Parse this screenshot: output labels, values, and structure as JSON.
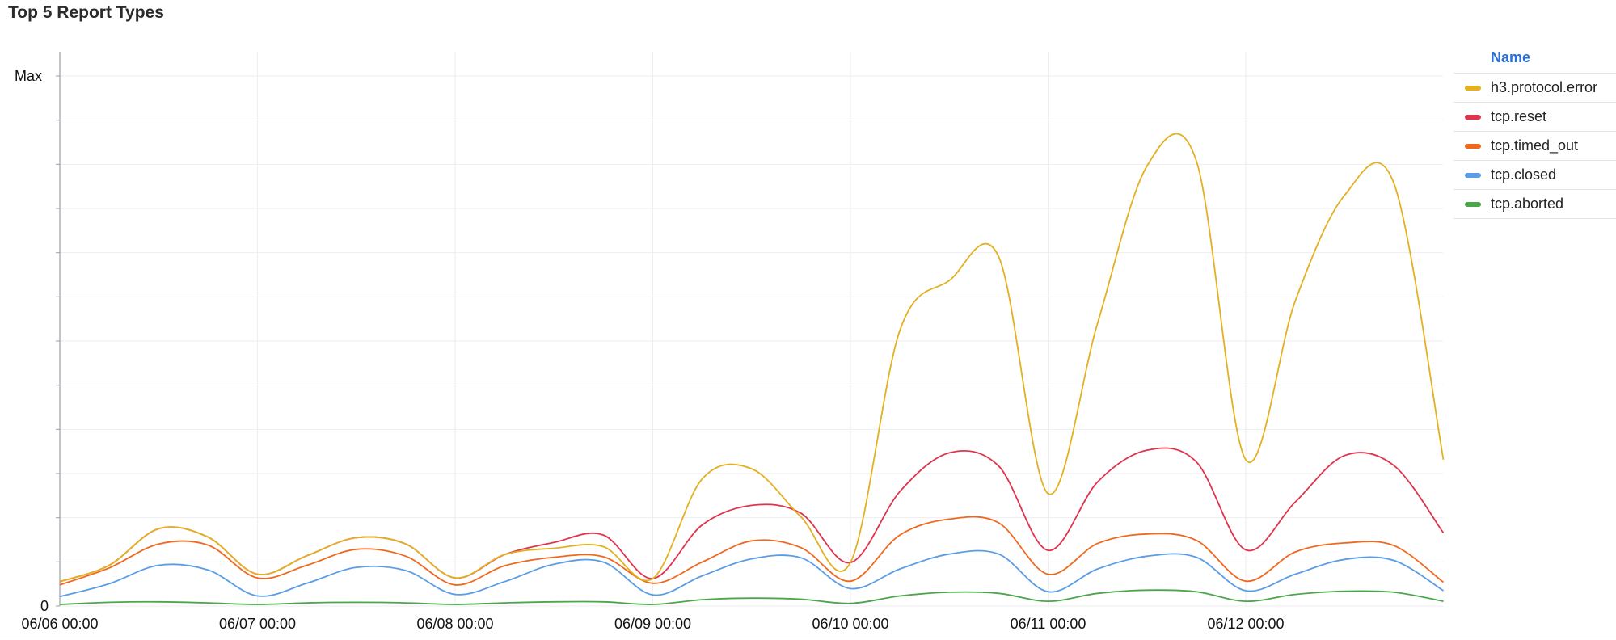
{
  "title": "Top 5 Report Types",
  "legend": {
    "header": "Name",
    "items": [
      {
        "label": "h3.protocol.error",
        "color": "#e3b020"
      },
      {
        "label": "tcp.reset",
        "color": "#e0334c"
      },
      {
        "label": "tcp.timed_out",
        "color": "#f0681e"
      },
      {
        "label": "tcp.closed",
        "color": "#5a9de6"
      },
      {
        "label": "tcp.aborted",
        "color": "#4ca64c"
      }
    ]
  },
  "chart_data": {
    "type": "line",
    "title": "Top 5 Report Types",
    "xlabel": "",
    "ylabel": "",
    "x_ticks": [
      "06/06 00:00",
      "06/07 00:00",
      "06/08 00:00",
      "06/09 00:00",
      "06/10 00:00",
      "06/11 00:00",
      "06/12 00:00"
    ],
    "y_ticks": [
      "0",
      "Max"
    ],
    "x": [
      "06/06 00:00",
      "06/06 06:00",
      "06/06 12:00",
      "06/06 18:00",
      "06/07 00:00",
      "06/07 06:00",
      "06/07 12:00",
      "06/07 18:00",
      "06/08 00:00",
      "06/08 06:00",
      "06/08 12:00",
      "06/08 18:00",
      "06/09 00:00",
      "06/09 06:00",
      "06/09 12:00",
      "06/09 18:00",
      "06/10 00:00",
      "06/10 06:00",
      "06/10 12:00",
      "06/10 18:00",
      "06/11 00:00",
      "06/11 06:00",
      "06/11 12:00",
      "06/11 18:00",
      "06/12 00:00",
      "06/12 06:00",
      "06/12 12:00",
      "06/12 18:00",
      "06/13 00:00"
    ],
    "ylim": [
      0,
      1
    ],
    "grid": true,
    "legend_position": "right",
    "series": [
      {
        "name": "h3.protocol.error",
        "color": "#e3b020",
        "values": [
          0.046,
          0.077,
          0.146,
          0.13,
          0.06,
          0.095,
          0.129,
          0.117,
          0.053,
          0.097,
          0.109,
          0.112,
          0.052,
          0.24,
          0.259,
          0.168,
          0.082,
          0.52,
          0.614,
          0.659,
          0.212,
          0.533,
          0.83,
          0.84,
          0.276,
          0.575,
          0.775,
          0.797,
          0.276
        ]
      },
      {
        "name": "tcp.reset",
        "color": "#e0334c",
        "values": [
          0.046,
          0.077,
          0.146,
          0.13,
          0.06,
          0.095,
          0.129,
          0.117,
          0.053,
          0.097,
          0.12,
          0.134,
          0.052,
          0.153,
          0.19,
          0.175,
          0.082,
          0.216,
          0.289,
          0.264,
          0.105,
          0.234,
          0.294,
          0.272,
          0.106,
          0.196,
          0.284,
          0.265,
          0.138
        ]
      },
      {
        "name": "tcp.timed_out",
        "color": "#f0681e",
        "values": [
          0.04,
          0.072,
          0.117,
          0.115,
          0.053,
          0.077,
          0.107,
          0.094,
          0.04,
          0.076,
          0.092,
          0.093,
          0.043,
          0.083,
          0.123,
          0.11,
          0.047,
          0.134,
          0.164,
          0.157,
          0.06,
          0.118,
          0.136,
          0.124,
          0.047,
          0.102,
          0.119,
          0.114,
          0.045
        ]
      },
      {
        "name": "tcp.closed",
        "color": "#5a9de6",
        "values": [
          0.018,
          0.042,
          0.077,
          0.068,
          0.019,
          0.043,
          0.073,
          0.067,
          0.022,
          0.046,
          0.079,
          0.083,
          0.021,
          0.057,
          0.089,
          0.091,
          0.033,
          0.07,
          0.098,
          0.098,
          0.027,
          0.07,
          0.094,
          0.092,
          0.029,
          0.06,
          0.088,
          0.086,
          0.029
        ]
      },
      {
        "name": "tcp.aborted",
        "color": "#4ca64c",
        "values": [
          0.003,
          0.007,
          0.008,
          0.006,
          0.003,
          0.006,
          0.007,
          0.006,
          0.003,
          0.006,
          0.008,
          0.008,
          0.003,
          0.012,
          0.015,
          0.013,
          0.005,
          0.019,
          0.026,
          0.024,
          0.009,
          0.024,
          0.03,
          0.027,
          0.009,
          0.022,
          0.028,
          0.026,
          0.009
        ]
      }
    ]
  }
}
